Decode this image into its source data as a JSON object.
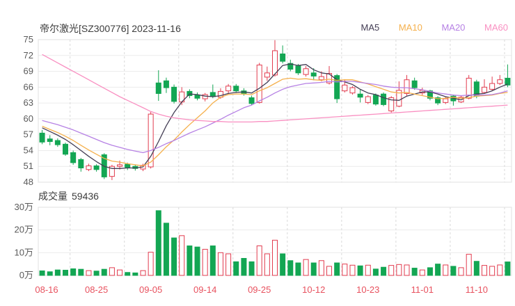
{
  "header": {
    "title": "帝尔激光[SZ300776] 2023-11-16",
    "legend": [
      {
        "label": "MA5",
        "color": "#433d54"
      },
      {
        "label": "MA10",
        "color": "#f5b04c"
      },
      {
        "label": "MA20",
        "color": "#b681e4"
      },
      {
        "label": "MA60",
        "color": "#f98fc1"
      }
    ]
  },
  "volume_header": {
    "label": "成交量",
    "value": "59436"
  },
  "colors": {
    "up": "#e23b4e",
    "down": "#13a653",
    "grid": "#ececec",
    "grid_dash": "#d9d9d9",
    "border": "#e0e0e0",
    "axis_text": "#5a5a5a",
    "date_text": "#e8515e"
  },
  "chart_data": {
    "type": "candlestick+volume",
    "title": "帝尔激光[SZ300776] 2023-11-16",
    "price_range": [
      48,
      75
    ],
    "price_axis_ticks": [
      "75",
      "72",
      "69",
      "66",
      "63",
      "60",
      "57",
      "54",
      "51",
      "48"
    ],
    "volume_axis_ticks": [
      "30万",
      "20万",
      "10万",
      "0万"
    ],
    "volume_range_wan": [
      0,
      30
    ],
    "x_axis_labels": [
      "08-16",
      "08-25",
      "09-05",
      "09-14",
      "09-25",
      "10-12",
      "10-23",
      "11-01",
      "11-10"
    ],
    "x_label_indices": [
      0,
      7,
      14,
      21,
      28,
      35,
      42,
      49,
      56
    ],
    "candles": [
      {
        "d": "08-16",
        "o": 57.3,
        "h": 57.9,
        "l": 55.2,
        "c": 55.6,
        "v": 2.0
      },
      {
        "d": "08-17",
        "o": 56.2,
        "h": 56.9,
        "l": 55.0,
        "c": 55.7,
        "v": 1.6
      },
      {
        "d": "08-18",
        "o": 55.9,
        "h": 56.3,
        "l": 54.7,
        "c": 55.1,
        "v": 2.4
      },
      {
        "d": "08-21",
        "o": 55.2,
        "h": 55.5,
        "l": 53.0,
        "c": 53.3,
        "v": 2.3
      },
      {
        "d": "08-22",
        "o": 53.6,
        "h": 54.0,
        "l": 51.3,
        "c": 51.7,
        "v": 2.9
      },
      {
        "d": "08-23",
        "o": 52.3,
        "h": 52.6,
        "l": 50.0,
        "c": 50.7,
        "v": 2.7
      },
      {
        "d": "08-24",
        "o": 50.4,
        "h": 51.5,
        "l": 50.1,
        "c": 51.1,
        "v": 2.1
      },
      {
        "d": "08-25",
        "o": 51.1,
        "h": 51.4,
        "l": 50.0,
        "c": 50.4,
        "v": 1.9
      },
      {
        "d": "08-28",
        "o": 53.2,
        "h": 53.5,
        "l": 48.6,
        "c": 49.0,
        "v": 2.7
      },
      {
        "d": "08-29",
        "o": 49.1,
        "h": 51.3,
        "l": 48.4,
        "c": 51.0,
        "v": 3.4
      },
      {
        "d": "08-30",
        "o": 51.0,
        "h": 52.1,
        "l": 50.4,
        "c": 51.3,
        "v": 2.4
      },
      {
        "d": "08-31",
        "o": 51.4,
        "h": 51.7,
        "l": 50.3,
        "c": 50.8,
        "v": 1.3
      },
      {
        "d": "09-01",
        "o": 51.0,
        "h": 51.3,
        "l": 50.2,
        "c": 50.6,
        "v": 1.1
      },
      {
        "d": "09-04",
        "o": 50.5,
        "h": 51.5,
        "l": 50.1,
        "c": 51.2,
        "v": 2.1
      },
      {
        "d": "09-05",
        "o": 50.9,
        "h": 61.3,
        "l": 50.6,
        "c": 60.9,
        "v": 10.2
      },
      {
        "d": "09-06",
        "o": 66.8,
        "h": 69.2,
        "l": 63.4,
        "c": 64.8,
        "v": 28.5
      },
      {
        "d": "09-07",
        "o": 67.2,
        "h": 67.8,
        "l": 64.9,
        "c": 65.9,
        "v": 23.0
      },
      {
        "d": "09-08",
        "o": 66.0,
        "h": 66.5,
        "l": 62.9,
        "c": 63.3,
        "v": 16.5
      },
      {
        "d": "09-11",
        "o": 63.2,
        "h": 66.0,
        "l": 62.6,
        "c": 65.1,
        "v": 17.5
      },
      {
        "d": "09-12",
        "o": 65.2,
        "h": 65.6,
        "l": 63.9,
        "c": 64.4,
        "v": 13.0
      },
      {
        "d": "09-13",
        "o": 64.5,
        "h": 65.0,
        "l": 63.5,
        "c": 63.9,
        "v": 12.5
      },
      {
        "d": "09-14",
        "o": 63.8,
        "h": 64.9,
        "l": 63.3,
        "c": 64.6,
        "v": 11.5
      },
      {
        "d": "09-15",
        "o": 65.0,
        "h": 66.5,
        "l": 63.9,
        "c": 64.2,
        "v": 13.0
      },
      {
        "d": "09-18",
        "o": 64.1,
        "h": 65.8,
        "l": 63.8,
        "c": 65.2,
        "v": 10.0
      },
      {
        "d": "09-19",
        "o": 65.3,
        "h": 66.6,
        "l": 64.7,
        "c": 66.2,
        "v": 9.5
      },
      {
        "d": "09-20",
        "o": 66.2,
        "h": 66.6,
        "l": 64.9,
        "c": 65.3,
        "v": 6.0
      },
      {
        "d": "09-21",
        "o": 65.3,
        "h": 65.8,
        "l": 64.4,
        "c": 64.8,
        "v": 7.5
      },
      {
        "d": "09-22",
        "o": 64.0,
        "h": 64.4,
        "l": 62.6,
        "c": 62.9,
        "v": 6.0
      },
      {
        "d": "09-25",
        "o": 63.1,
        "h": 70.6,
        "l": 62.9,
        "c": 70.2,
        "v": 13.0
      },
      {
        "d": "09-26",
        "o": 67.9,
        "h": 69.9,
        "l": 67.2,
        "c": 68.7,
        "v": 9.5
      },
      {
        "d": "09-27",
        "o": 68.3,
        "h": 74.9,
        "l": 68.0,
        "c": 72.9,
        "v": 15.5
      },
      {
        "d": "09-28",
        "o": 72.3,
        "h": 73.9,
        "l": 70.5,
        "c": 70.9,
        "v": 9.5
      },
      {
        "d": "10-09",
        "o": 70.5,
        "h": 71.2,
        "l": 69.0,
        "c": 69.4,
        "v": 6.5
      },
      {
        "d": "10-10",
        "o": 70.0,
        "h": 70.4,
        "l": 68.3,
        "c": 68.7,
        "v": 5.5
      },
      {
        "d": "10-11",
        "o": 68.4,
        "h": 70.0,
        "l": 68.0,
        "c": 69.5,
        "v": 7.0
      },
      {
        "d": "10-12",
        "o": 68.7,
        "h": 69.6,
        "l": 67.3,
        "c": 68.1,
        "v": 5.5
      },
      {
        "d": "10-13",
        "o": 67.4,
        "h": 69.0,
        "l": 67.1,
        "c": 68.0,
        "v": 6.5
      },
      {
        "d": "10-16",
        "o": 66.8,
        "h": 70.0,
        "l": 66.5,
        "c": 68.6,
        "v": 4.0
      },
      {
        "d": "10-17",
        "o": 68.2,
        "h": 68.5,
        "l": 63.0,
        "c": 63.8,
        "v": 5.5
      },
      {
        "d": "10-18",
        "o": 65.3,
        "h": 67.5,
        "l": 65.0,
        "c": 66.4,
        "v": 5.0
      },
      {
        "d": "10-19",
        "o": 64.9,
        "h": 66.2,
        "l": 64.6,
        "c": 65.9,
        "v": 4.5
      },
      {
        "d": "10-20",
        "o": 64.7,
        "h": 65.5,
        "l": 63.1,
        "c": 64.1,
        "v": 4.2
      },
      {
        "d": "10-23",
        "o": 63.1,
        "h": 64.5,
        "l": 62.8,
        "c": 64.2,
        "v": 4.5
      },
      {
        "d": "10-24",
        "o": 64.5,
        "h": 64.8,
        "l": 62.5,
        "c": 62.8,
        "v": 2.8
      },
      {
        "d": "10-25",
        "o": 64.7,
        "h": 65.0,
        "l": 62.4,
        "c": 62.7,
        "v": 3.6
      },
      {
        "d": "10-26",
        "o": 61.5,
        "h": 64.3,
        "l": 61.2,
        "c": 64.0,
        "v": 4.4
      },
      {
        "d": "10-27",
        "o": 62.4,
        "h": 67.1,
        "l": 62.2,
        "c": 65.4,
        "v": 4.8
      },
      {
        "d": "10-30",
        "o": 64.8,
        "h": 68.3,
        "l": 64.4,
        "c": 67.4,
        "v": 4.6
      },
      {
        "d": "10-31",
        "o": 67.2,
        "h": 67.8,
        "l": 65.5,
        "c": 65.9,
        "v": 3.2
      },
      {
        "d": "11-01",
        "o": 64.9,
        "h": 65.9,
        "l": 64.5,
        "c": 65.4,
        "v": 2.4
      },
      {
        "d": "11-02",
        "o": 65.3,
        "h": 65.5,
        "l": 63.5,
        "c": 63.9,
        "v": 3.4
      },
      {
        "d": "11-03",
        "o": 64.0,
        "h": 64.3,
        "l": 62.6,
        "c": 63.0,
        "v": 5.0
      },
      {
        "d": "11-06",
        "o": 63.1,
        "h": 64.2,
        "l": 62.8,
        "c": 63.8,
        "v": 4.6
      },
      {
        "d": "11-07",
        "o": 64.3,
        "h": 64.6,
        "l": 62.5,
        "c": 63.4,
        "v": 4.0
      },
      {
        "d": "11-08",
        "o": 63.2,
        "h": 64.4,
        "l": 63.0,
        "c": 64.1,
        "v": 3.4
      },
      {
        "d": "11-09",
        "o": 63.9,
        "h": 68.3,
        "l": 63.7,
        "c": 67.7,
        "v": 9.3
      },
      {
        "d": "11-10",
        "o": 67.0,
        "h": 67.4,
        "l": 63.9,
        "c": 64.3,
        "v": 6.2
      },
      {
        "d": "11-13",
        "o": 65.0,
        "h": 67.5,
        "l": 64.8,
        "c": 66.0,
        "v": 4.4
      },
      {
        "d": "11-14",
        "o": 65.6,
        "h": 68.0,
        "l": 65.3,
        "c": 66.7,
        "v": 4.0
      },
      {
        "d": "11-15",
        "o": 66.7,
        "h": 68.3,
        "l": 66.4,
        "c": 67.4,
        "v": 4.6
      },
      {
        "d": "11-16",
        "o": 67.7,
        "h": 70.3,
        "l": 66.0,
        "c": 66.4,
        "v": 5.94
      }
    ],
    "ma_series": [
      {
        "name": "MA5",
        "color": "#433d54",
        "values": [
          58.3,
          57.6,
          56.9,
          56.1,
          55.1,
          54.0,
          52.9,
          51.9,
          51.0,
          50.6,
          50.6,
          50.7,
          50.7,
          50.9,
          52.9,
          55.7,
          58.7,
          61.2,
          63.2,
          64.7,
          64.6,
          64.3,
          64.2,
          64.4,
          64.8,
          65.0,
          65.1,
          64.9,
          65.8,
          66.9,
          68.5,
          70.1,
          70.4,
          70.1,
          70.3,
          69.3,
          68.7,
          68.5,
          67.4,
          67.0,
          66.5,
          65.6,
          64.9,
          64.6,
          64.0,
          63.6,
          63.5,
          64.3,
          64.7,
          65.1,
          65.1,
          64.7,
          64.2,
          63.9,
          63.6,
          64.4,
          64.7,
          64.8,
          65.3,
          66.0,
          66.6
        ]
      },
      {
        "name": "MA10",
        "color": "#f5b04c",
        "values": [
          58.6,
          58.0,
          57.4,
          56.7,
          55.9,
          55.0,
          54.1,
          53.3,
          52.5,
          52.0,
          51.8,
          51.5,
          51.3,
          51.1,
          51.8,
          53.2,
          54.7,
          56.0,
          57.5,
          58.9,
          60.2,
          61.5,
          63.0,
          64.1,
          64.6,
          64.7,
          64.7,
          64.6,
          65.3,
          65.9,
          66.7,
          67.5,
          67.7,
          67.5,
          67.6,
          67.4,
          67.3,
          67.5,
          67.3,
          67.4,
          67.4,
          67.0,
          66.6,
          66.1,
          65.6,
          65.1,
          64.9,
          65.0,
          64.7,
          64.4,
          64.1,
          63.8,
          63.9,
          64.1,
          63.9,
          64.0,
          64.3,
          64.4,
          64.5,
          64.8,
          65.0
        ]
      },
      {
        "name": "MA20",
        "color": "#b681e4",
        "values": [
          59.7,
          59.3,
          58.9,
          58.4,
          57.9,
          57.3,
          56.7,
          56.1,
          55.5,
          55.0,
          54.6,
          54.2,
          53.9,
          53.6,
          54.0,
          54.6,
          55.3,
          55.9,
          56.6,
          57.3,
          57.9,
          58.5,
          59.2,
          59.9,
          60.7,
          61.4,
          62.1,
          62.6,
          63.4,
          64.1,
          64.9,
          65.6,
          66.1,
          66.4,
          66.7,
          66.8,
          66.9,
          67.1,
          67.0,
          67.1,
          67.1,
          66.9,
          66.7,
          66.5,
          66.2,
          66.0,
          65.9,
          65.9,
          65.7,
          65.5,
          65.2,
          64.9,
          64.7,
          64.5,
          64.4,
          64.5,
          64.5,
          64.5,
          64.6,
          64.9,
          65.3
        ]
      },
      {
        "name": "MA60",
        "color": "#f98fc1",
        "values": [
          72.2,
          71.4,
          70.6,
          69.8,
          69.0,
          68.2,
          67.4,
          66.6,
          65.8,
          65.0,
          64.2,
          63.5,
          62.8,
          62.1,
          61.4,
          60.9,
          60.5,
          60.2,
          60.0,
          59.8,
          59.7,
          59.6,
          59.5,
          59.5,
          59.4,
          59.4,
          59.4,
          59.4,
          59.5,
          59.5,
          59.6,
          59.7,
          59.8,
          59.9,
          60.0,
          60.1,
          60.2,
          60.3,
          60.4,
          60.5,
          60.6,
          60.7,
          60.8,
          60.9,
          61.0,
          61.1,
          61.2,
          61.3,
          61.4,
          61.5,
          61.6,
          61.7,
          61.8,
          61.9,
          62.0,
          62.1,
          62.2,
          62.3,
          62.4,
          62.5,
          62.6
        ]
      }
    ]
  }
}
